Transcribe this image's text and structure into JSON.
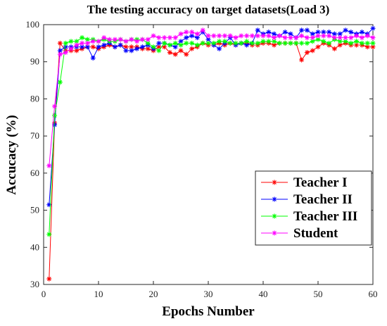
{
  "chart_data": {
    "type": "line",
    "title": "The testing accuracy on target datasets(Load 3)",
    "xlabel": "Epochs Number",
    "ylabel": "Accucacy (%)",
    "xlim": [
      0,
      60
    ],
    "ylim": [
      30,
      100
    ],
    "xticks": [
      0,
      10,
      20,
      30,
      40,
      50,
      60
    ],
    "yticks": [
      30,
      40,
      50,
      60,
      70,
      80,
      90,
      100
    ],
    "grid": false,
    "legend_position": "bottom-right",
    "x": [
      1,
      2,
      3,
      4,
      5,
      6,
      7,
      8,
      9,
      10,
      11,
      12,
      13,
      14,
      15,
      16,
      17,
      18,
      19,
      20,
      21,
      22,
      23,
      24,
      25,
      26,
      27,
      28,
      29,
      30,
      31,
      32,
      33,
      34,
      35,
      36,
      37,
      38,
      39,
      40,
      41,
      42,
      43,
      44,
      45,
      46,
      47,
      48,
      49,
      50,
      51,
      52,
      53,
      54,
      55,
      56,
      57,
      58,
      59,
      60
    ],
    "series": [
      {
        "name": "Teacher I",
        "color": "#ff0000",
        "values": [
          31.5,
          73.5,
          95,
          93,
          93,
          93,
          93.5,
          94,
          94,
          93.5,
          94,
          94.5,
          94,
          94.5,
          94,
          94,
          94,
          93.5,
          93.5,
          93,
          94,
          94,
          92.5,
          92,
          93,
          92,
          93.5,
          94,
          95,
          94.5,
          94.5,
          95,
          94.5,
          95,
          94.5,
          95,
          95,
          94.5,
          94.5,
          95,
          95,
          94.5,
          95,
          95,
          95,
          95,
          90.5,
          92.5,
          93,
          94,
          95,
          94.5,
          93.5,
          94.5,
          95,
          94.5,
          94.5,
          94.5,
          94,
          94
        ]
      },
      {
        "name": "Teacher II",
        "color": "#0000ff",
        "values": [
          51.5,
          73,
          93,
          94,
          94,
          94,
          94,
          94,
          91,
          94,
          94.5,
          95,
          94,
          94.5,
          93,
          93,
          93.5,
          94,
          94.5,
          93.5,
          95,
          95,
          94.5,
          94,
          95.5,
          96.5,
          97,
          96.5,
          98,
          96,
          94.5,
          93.5,
          95,
          96.5,
          94.5,
          95,
          94.5,
          95,
          98.5,
          97.5,
          98,
          97.5,
          97,
          98,
          97.5,
          96.5,
          98.5,
          98.5,
          97.5,
          98,
          98,
          98,
          97.5,
          97.5,
          98.5,
          98,
          97.5,
          98,
          97.5,
          99
        ]
      },
      {
        "name": "Teacher III",
        "color": "#00ff00",
        "values": [
          43.5,
          75.5,
          84.5,
          95,
          95.5,
          95.5,
          96.5,
          96,
          96,
          95.5,
          96,
          95.5,
          95.5,
          96,
          95.5,
          96,
          96,
          96,
          95,
          94,
          93,
          95,
          94.5,
          95,
          94.5,
          95,
          95,
          94.5,
          95,
          95,
          95,
          95.5,
          95.5,
          95,
          95,
          95,
          95.5,
          95,
          95,
          95.5,
          95.5,
          95.5,
          95,
          95,
          95,
          95,
          95,
          95,
          95.5,
          96,
          95.5,
          95,
          96,
          95.5,
          95.5,
          95,
          95.5,
          95,
          95,
          95
        ]
      },
      {
        "name": "Student",
        "color": "#ff00ff",
        "values": [
          62,
          78,
          92,
          92.5,
          93.5,
          94.5,
          95,
          95,
          95.5,
          95.5,
          96.5,
          96,
          96,
          96,
          95.5,
          96,
          95.5,
          96,
          96,
          97,
          96.5,
          96.5,
          96.5,
          96.5,
          97.5,
          98,
          98,
          97.5,
          98.5,
          97,
          97,
          97,
          97,
          97,
          96.5,
          97,
          97,
          97,
          97,
          97,
          97,
          96.5,
          97,
          96.5,
          96.5,
          96.5,
          97,
          96.5,
          96.5,
          97,
          97,
          97,
          96.5,
          96.5,
          96.5,
          96.5,
          97,
          96.5,
          97,
          96.5
        ]
      }
    ]
  }
}
